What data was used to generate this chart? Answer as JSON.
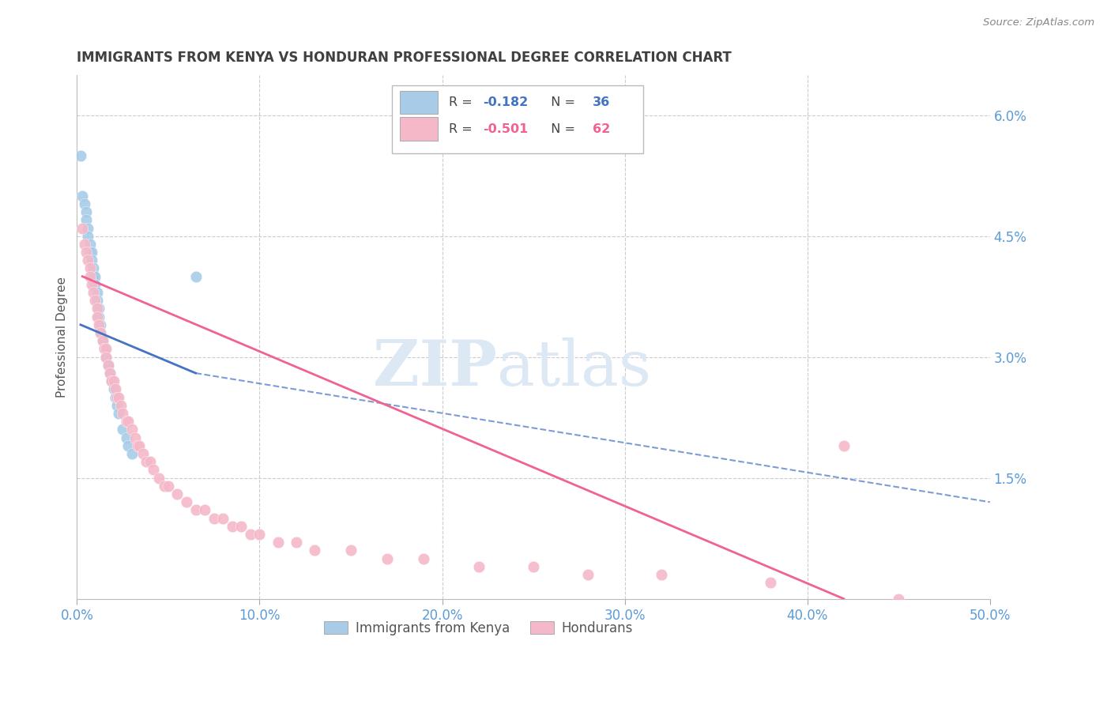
{
  "title": "IMMIGRANTS FROM KENYA VS HONDURAN PROFESSIONAL DEGREE CORRELATION CHART",
  "source": "Source: ZipAtlas.com",
  "ylabel": "Professional Degree",
  "legend_entry1_r": "R = ",
  "legend_entry1_rv": "-0.182",
  "legend_entry1_n": "  N = ",
  "legend_entry1_nv": "36",
  "legend_entry2_r": "R = ",
  "legend_entry2_rv": "-0.501",
  "legend_entry2_n": "  N = ",
  "legend_entry2_nv": "62",
  "legend_label1": "Immigrants from Kenya",
  "legend_label2": "Hondurans",
  "blue_color": "#a8cce8",
  "pink_color": "#f4b8c8",
  "blue_line_color": "#4472c4",
  "pink_line_color": "#f06292",
  "watermark_zip": "ZIP",
  "watermark_atlas": "atlas",
  "watermark_color": "#dce9f5",
  "background_color": "#ffffff",
  "grid_color": "#cccccc",
  "title_color": "#404040",
  "axis_label_color": "#5b9bd5",
  "kenya_x": [
    0.002,
    0.003,
    0.004,
    0.005,
    0.005,
    0.006,
    0.006,
    0.007,
    0.007,
    0.008,
    0.008,
    0.009,
    0.009,
    0.01,
    0.01,
    0.011,
    0.011,
    0.012,
    0.012,
    0.013,
    0.013,
    0.014,
    0.015,
    0.016,
    0.017,
    0.018,
    0.019,
    0.02,
    0.021,
    0.022,
    0.023,
    0.025,
    0.027,
    0.028,
    0.03,
    0.065
  ],
  "kenya_y": [
    0.055,
    0.05,
    0.049,
    0.048,
    0.047,
    0.046,
    0.045,
    0.044,
    0.043,
    0.043,
    0.042,
    0.041,
    0.04,
    0.04,
    0.039,
    0.038,
    0.037,
    0.036,
    0.035,
    0.034,
    0.033,
    0.032,
    0.031,
    0.03,
    0.029,
    0.028,
    0.027,
    0.026,
    0.025,
    0.024,
    0.023,
    0.021,
    0.02,
    0.019,
    0.018,
    0.04
  ],
  "honduran_x": [
    0.003,
    0.004,
    0.005,
    0.006,
    0.007,
    0.007,
    0.008,
    0.009,
    0.01,
    0.011,
    0.011,
    0.012,
    0.013,
    0.014,
    0.015,
    0.016,
    0.016,
    0.017,
    0.018,
    0.019,
    0.02,
    0.021,
    0.022,
    0.023,
    0.024,
    0.025,
    0.027,
    0.028,
    0.03,
    0.032,
    0.033,
    0.034,
    0.036,
    0.038,
    0.04,
    0.042,
    0.045,
    0.048,
    0.05,
    0.055,
    0.06,
    0.065,
    0.07,
    0.075,
    0.08,
    0.085,
    0.09,
    0.095,
    0.1,
    0.11,
    0.12,
    0.13,
    0.15,
    0.17,
    0.19,
    0.22,
    0.25,
    0.28,
    0.32,
    0.38,
    0.42,
    0.45
  ],
  "honduran_y": [
    0.046,
    0.044,
    0.043,
    0.042,
    0.041,
    0.04,
    0.039,
    0.038,
    0.037,
    0.036,
    0.035,
    0.034,
    0.033,
    0.032,
    0.031,
    0.031,
    0.03,
    0.029,
    0.028,
    0.027,
    0.027,
    0.026,
    0.025,
    0.025,
    0.024,
    0.023,
    0.022,
    0.022,
    0.021,
    0.02,
    0.019,
    0.019,
    0.018,
    0.017,
    0.017,
    0.016,
    0.015,
    0.014,
    0.014,
    0.013,
    0.012,
    0.011,
    0.011,
    0.01,
    0.01,
    0.009,
    0.009,
    0.008,
    0.008,
    0.007,
    0.007,
    0.006,
    0.006,
    0.005,
    0.005,
    0.004,
    0.004,
    0.003,
    0.003,
    0.002,
    0.019,
    0.0
  ],
  "xlim": [
    0.0,
    0.5
  ],
  "ylim": [
    0.0,
    0.065
  ],
  "xtick_vals": [
    0.0,
    0.1,
    0.2,
    0.3,
    0.4,
    0.5
  ],
  "xtick_labels": [
    "0.0%",
    "10.0%",
    "20.0%",
    "30.0%",
    "40.0%",
    "50.0%"
  ],
  "right_ytick_vals": [
    0.0,
    0.015,
    0.03,
    0.045,
    0.06
  ],
  "right_ytick_labels": [
    "",
    "1.5%",
    "3.0%",
    "4.5%",
    "6.0%"
  ],
  "kenya_line_x_start": 0.002,
  "kenya_line_x_end": 0.065,
  "kenya_line_x_dash_end": 0.5,
  "kenya_line_y_start": 0.034,
  "kenya_line_y_end": 0.028,
  "kenya_line_y_dash_end": 0.012,
  "honduran_line_x_start": 0.003,
  "honduran_line_x_end": 0.42,
  "honduran_line_y_start": 0.04,
  "honduran_line_y_end": 0.0
}
